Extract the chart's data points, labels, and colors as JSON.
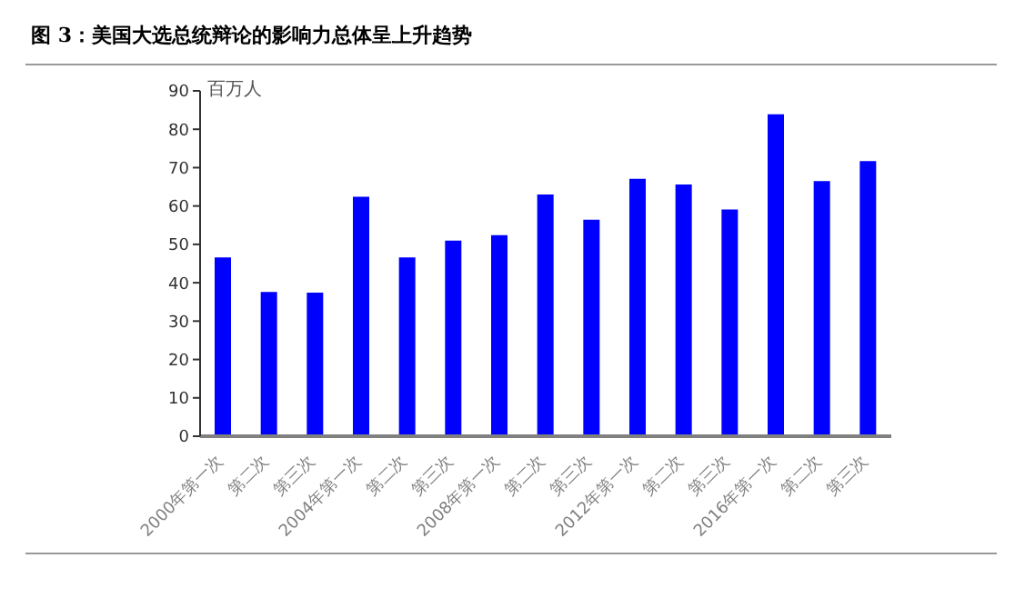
{
  "chart_data": {
    "type": "bar",
    "title": "图 3：美国大选总统辩论的影响力总体呈上升趋势",
    "ylabel": "百万人",
    "categories": [
      "2000年第一次",
      "第二次",
      "第三次",
      "2004年第一次",
      "第二次",
      "第三次",
      "2008年第一次",
      "第二次",
      "第三次",
      "2012年第一次",
      "第二次",
      "第三次",
      "2016年第一次",
      "第二次",
      "第三次"
    ],
    "values": [
      46.6,
      37.6,
      37.4,
      62.4,
      46.6,
      51,
      52.4,
      63,
      56.4,
      67.1,
      65.6,
      59.1,
      83.9,
      66.5,
      71.7
    ],
    "color": "#0000ff",
    "ylim": [
      0,
      90
    ],
    "yticks": [
      0,
      10,
      20,
      30,
      40,
      50,
      60,
      70,
      80,
      90
    ],
    "grid": false,
    "legend": false
  }
}
